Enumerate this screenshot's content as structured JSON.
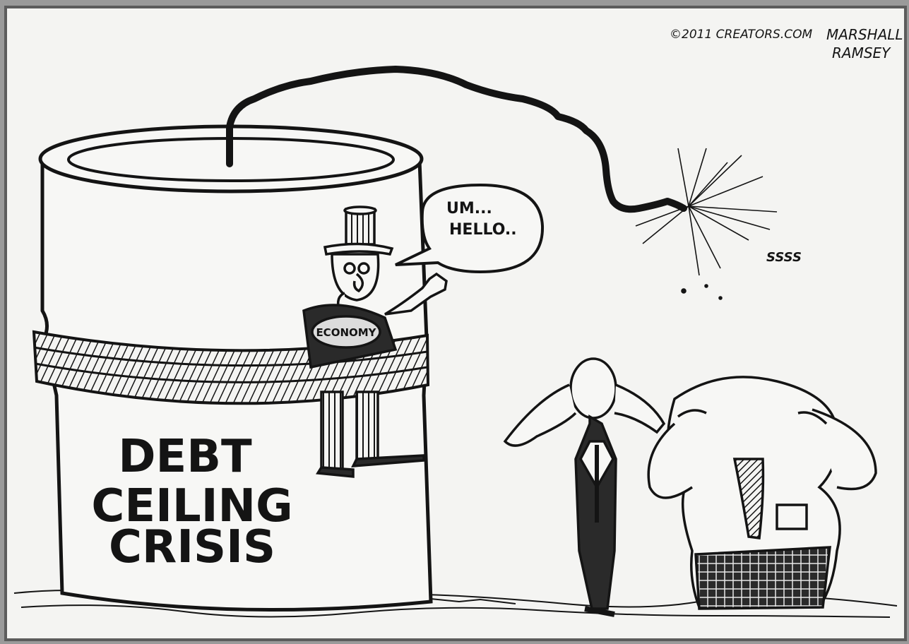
{
  "image": {
    "label_text": "DEBT CEILING CRISIS",
    "label_lines": [
      "DEBT",
      "CEILING",
      "CRISIS"
    ],
    "speech_bubble_lines": [
      "UM...",
      "HELLO.."
    ],
    "sash_text": "ECONOMY",
    "sound_effect": "SSSS",
    "signature": {
      "copyright": "©2011 CREATORS.COM",
      "artist_lines": [
        "MARSHALL",
        "RAMSEY"
      ]
    },
    "colors": {
      "paper": "#f4f4f2",
      "ink": "#141414",
      "frame": "#5c5c5c"
    }
  }
}
